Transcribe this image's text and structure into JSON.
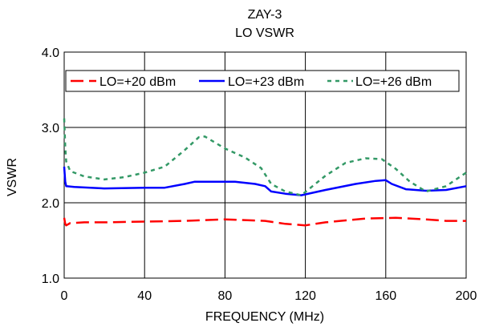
{
  "chart_data": {
    "type": "line",
    "title": "ZAY-3",
    "subtitle": "LO VSWR",
    "xlabel": "FREQUENCY (MHz)",
    "ylabel": "VSWR",
    "xlim": [
      0,
      200
    ],
    "ylim": [
      1.0,
      4.0
    ],
    "x_ticks": [
      0,
      40,
      80,
      120,
      160,
      200
    ],
    "y_ticks": [
      1.0,
      2.0,
      3.0,
      4.0
    ],
    "x_tick_labels": [
      "0",
      "40",
      "80",
      "120",
      "160",
      "200"
    ],
    "y_tick_labels": [
      "1.0",
      "2.0",
      "3.0",
      "4.0"
    ],
    "grid": true,
    "legend_position": "top",
    "series": [
      {
        "name": "LO=+20 dBm",
        "color": "#ff0000",
        "dash": "dash",
        "points": [
          [
            0,
            1.8
          ],
          [
            0.5,
            1.72
          ],
          [
            1,
            1.7
          ],
          [
            3,
            1.73
          ],
          [
            10,
            1.74
          ],
          [
            20,
            1.74
          ],
          [
            40,
            1.75
          ],
          [
            60,
            1.76
          ],
          [
            80,
            1.78
          ],
          [
            100,
            1.76
          ],
          [
            110,
            1.72
          ],
          [
            120,
            1.7
          ],
          [
            130,
            1.74
          ],
          [
            150,
            1.79
          ],
          [
            165,
            1.8
          ],
          [
            180,
            1.78
          ],
          [
            190,
            1.76
          ],
          [
            200,
            1.76
          ]
        ]
      },
      {
        "name": "LO=+23 dBm",
        "color": "#0000ff",
        "dash": "solid",
        "points": [
          [
            0,
            2.48
          ],
          [
            0.5,
            2.28
          ],
          [
            1,
            2.22
          ],
          [
            5,
            2.21
          ],
          [
            20,
            2.19
          ],
          [
            40,
            2.2
          ],
          [
            50,
            2.2
          ],
          [
            60,
            2.25
          ],
          [
            65,
            2.28
          ],
          [
            75,
            2.28
          ],
          [
            85,
            2.28
          ],
          [
            95,
            2.25
          ],
          [
            100,
            2.22
          ],
          [
            103,
            2.15
          ],
          [
            110,
            2.12
          ],
          [
            118,
            2.1
          ],
          [
            130,
            2.17
          ],
          [
            145,
            2.25
          ],
          [
            155,
            2.29
          ],
          [
            160,
            2.3
          ],
          [
            163,
            2.25
          ],
          [
            170,
            2.18
          ],
          [
            180,
            2.16
          ],
          [
            190,
            2.17
          ],
          [
            200,
            2.22
          ]
        ]
      },
      {
        "name": "LO=+26 dBm",
        "color": "#339966",
        "dash": "dot",
        "points": [
          [
            0,
            3.12
          ],
          [
            0.5,
            2.75
          ],
          [
            1,
            2.55
          ],
          [
            3,
            2.42
          ],
          [
            10,
            2.35
          ],
          [
            20,
            2.31
          ],
          [
            30,
            2.34
          ],
          [
            40,
            2.4
          ],
          [
            50,
            2.48
          ],
          [
            60,
            2.7
          ],
          [
            67,
            2.87
          ],
          [
            70,
            2.88
          ],
          [
            75,
            2.8
          ],
          [
            80,
            2.72
          ],
          [
            90,
            2.6
          ],
          [
            98,
            2.46
          ],
          [
            103,
            2.25
          ],
          [
            110,
            2.15
          ],
          [
            118,
            2.1
          ],
          [
            130,
            2.36
          ],
          [
            140,
            2.53
          ],
          [
            150,
            2.59
          ],
          [
            158,
            2.58
          ],
          [
            165,
            2.45
          ],
          [
            172,
            2.28
          ],
          [
            180,
            2.15
          ],
          [
            190,
            2.22
          ],
          [
            200,
            2.4
          ]
        ]
      }
    ]
  }
}
